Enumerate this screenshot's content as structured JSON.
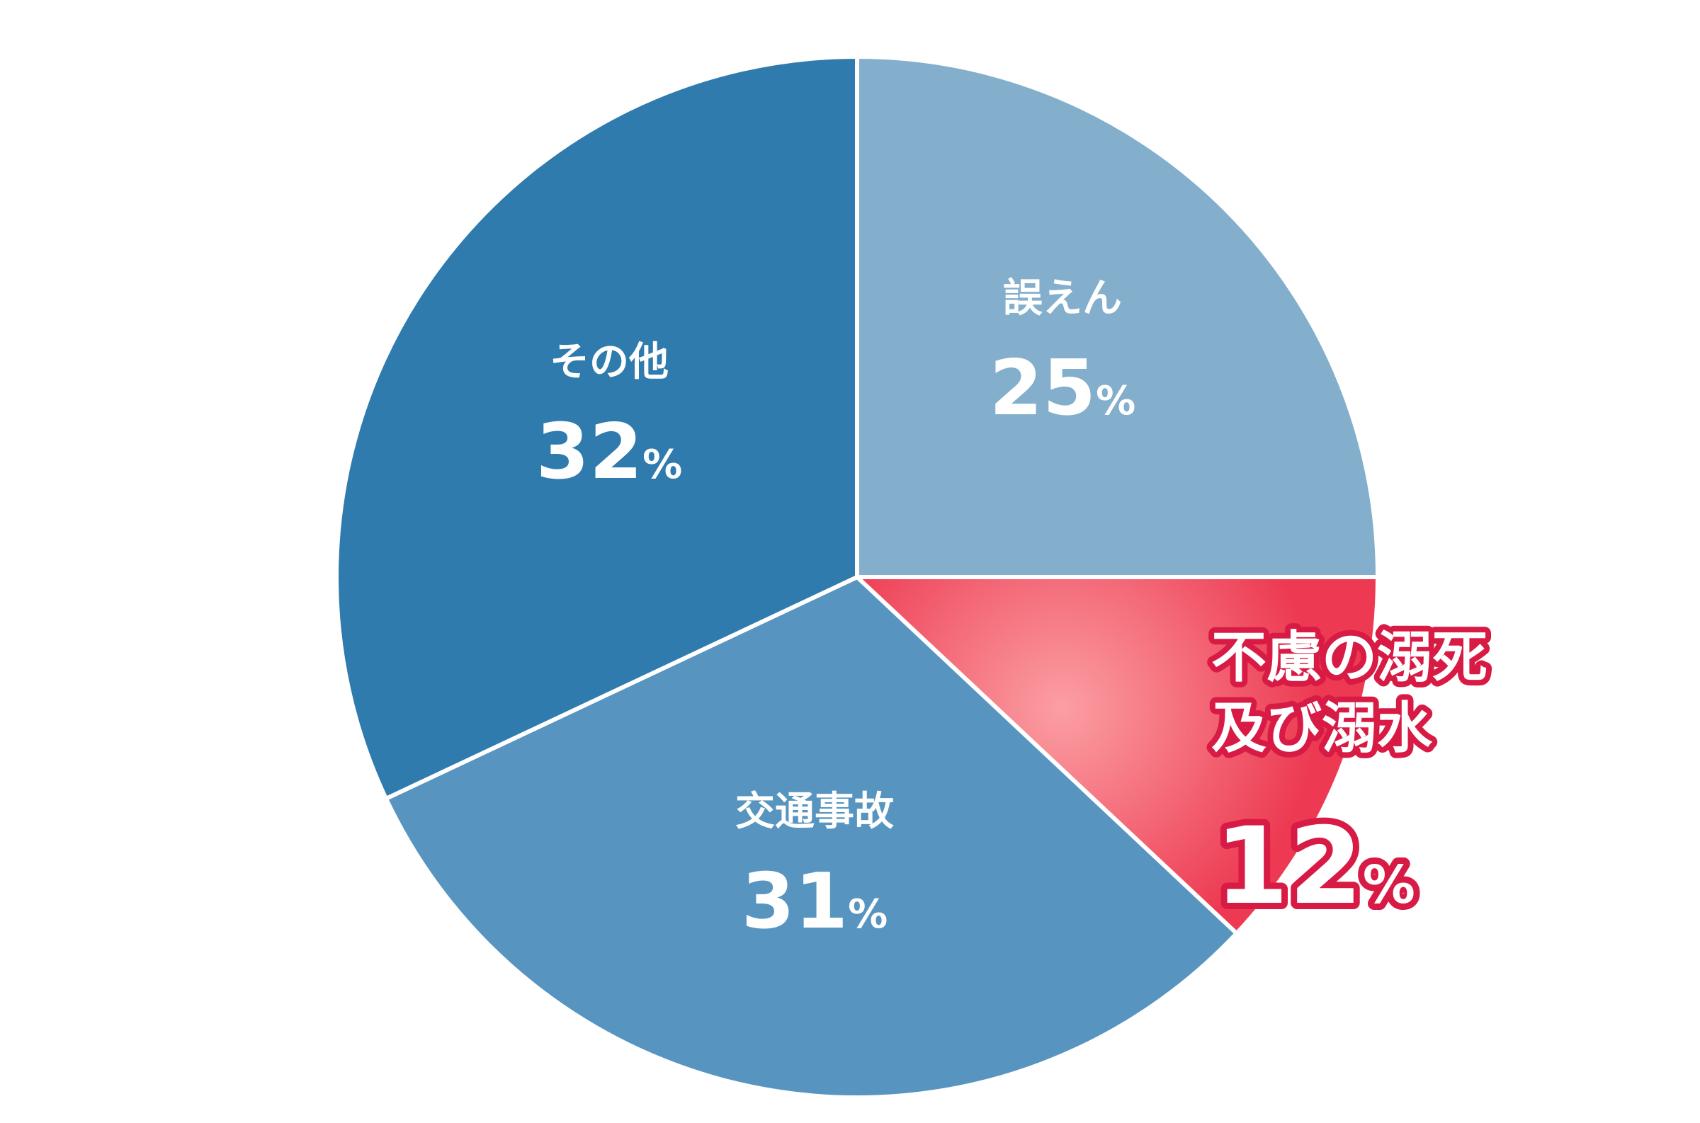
{
  "chart_data": {
    "type": "pie",
    "unit": "%",
    "slices": [
      {
        "name": "誤えん",
        "value": 25,
        "color": "#83afcd"
      },
      {
        "name": "不慮の溺死\n及び溺水",
        "value": 12,
        "color": "#ed3a52",
        "highlight": true,
        "highlight_inner": "#fb9fa3"
      },
      {
        "name": "交通事故",
        "value": 31,
        "color": "#5795c0"
      },
      {
        "name": "その他",
        "value": 32,
        "color": "#2f7bad"
      }
    ],
    "separator_color": "#ffffff",
    "highlight_outline": "#d81b45"
  }
}
